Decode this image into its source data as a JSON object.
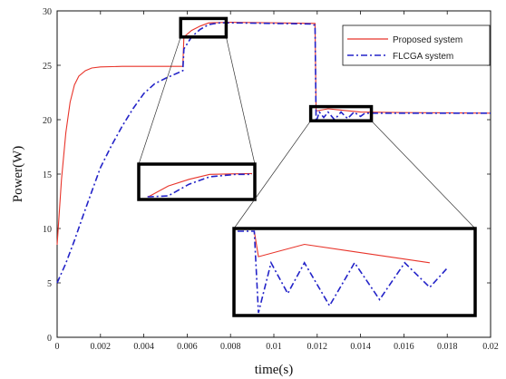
{
  "chart_data": {
    "type": "line",
    "xlabel": "time(s)",
    "ylabel": "Power(W)",
    "xlim": [
      0,
      0.02
    ],
    "ylim": [
      0,
      30
    ],
    "x_ticks": [
      "0",
      "0.002",
      "0.004",
      "0.006",
      "0.008",
      "0.01",
      "0.012",
      "0.014",
      "0.016",
      "0.018",
      "0.02"
    ],
    "y_ticks": [
      "0",
      "5",
      "10",
      "15",
      "20",
      "25",
      "30"
    ],
    "legend_position": "top-right",
    "grid": false,
    "series": [
      {
        "name": "Proposed system",
        "color": "#e8342a",
        "style": "solid",
        "points": [
          [
            0,
            8.5
          ],
          [
            0.0002,
            14.5
          ],
          [
            0.0004,
            18.8
          ],
          [
            0.0006,
            21.6
          ],
          [
            0.0008,
            23.2
          ],
          [
            0.001,
            24.0
          ],
          [
            0.0013,
            24.5
          ],
          [
            0.0016,
            24.75
          ],
          [
            0.002,
            24.85
          ],
          [
            0.003,
            24.9
          ],
          [
            0.0058,
            24.9
          ],
          [
            0.00585,
            27.6
          ],
          [
            0.0062,
            28.2
          ],
          [
            0.0066,
            28.6
          ],
          [
            0.007,
            28.9
          ],
          [
            0.008,
            28.95
          ],
          [
            0.01,
            28.9
          ],
          [
            0.0119,
            28.85
          ],
          [
            0.01195,
            20.8
          ],
          [
            0.0125,
            21.0
          ],
          [
            0.013,
            20.9
          ],
          [
            0.014,
            20.7
          ],
          [
            0.016,
            20.65
          ],
          [
            0.02,
            20.6
          ]
        ]
      },
      {
        "name": "FLCGA system",
        "color": "#2323c8",
        "style": "dashdot",
        "points": [
          [
            0,
            5.0
          ],
          [
            0.0004,
            6.8
          ],
          [
            0.0008,
            8.9
          ],
          [
            0.0012,
            11.2
          ],
          [
            0.0016,
            13.4
          ],
          [
            0.002,
            15.6
          ],
          [
            0.0025,
            17.6
          ],
          [
            0.003,
            19.4
          ],
          [
            0.0035,
            21.0
          ],
          [
            0.004,
            22.4
          ],
          [
            0.0045,
            23.3
          ],
          [
            0.005,
            23.8
          ],
          [
            0.0058,
            24.5
          ],
          [
            0.00585,
            26.5
          ],
          [
            0.0062,
            27.6
          ],
          [
            0.0066,
            28.3
          ],
          [
            0.007,
            28.75
          ],
          [
            0.0075,
            28.9
          ],
          [
            0.008,
            28.9
          ],
          [
            0.0117,
            28.8
          ],
          [
            0.0118,
            28.7
          ],
          [
            0.0119,
            28.7
          ],
          [
            0.01195,
            19.8
          ],
          [
            0.0121,
            20.7
          ],
          [
            0.0123,
            20.2
          ],
          [
            0.0125,
            20.7
          ],
          [
            0.0128,
            20.0
          ],
          [
            0.0131,
            20.7
          ],
          [
            0.0134,
            20.1
          ],
          [
            0.0137,
            20.7
          ],
          [
            0.014,
            20.3
          ],
          [
            0.0142,
            20.6
          ],
          [
            0.015,
            20.6
          ],
          [
            0.02,
            20.6
          ]
        ]
      }
    ]
  }
}
